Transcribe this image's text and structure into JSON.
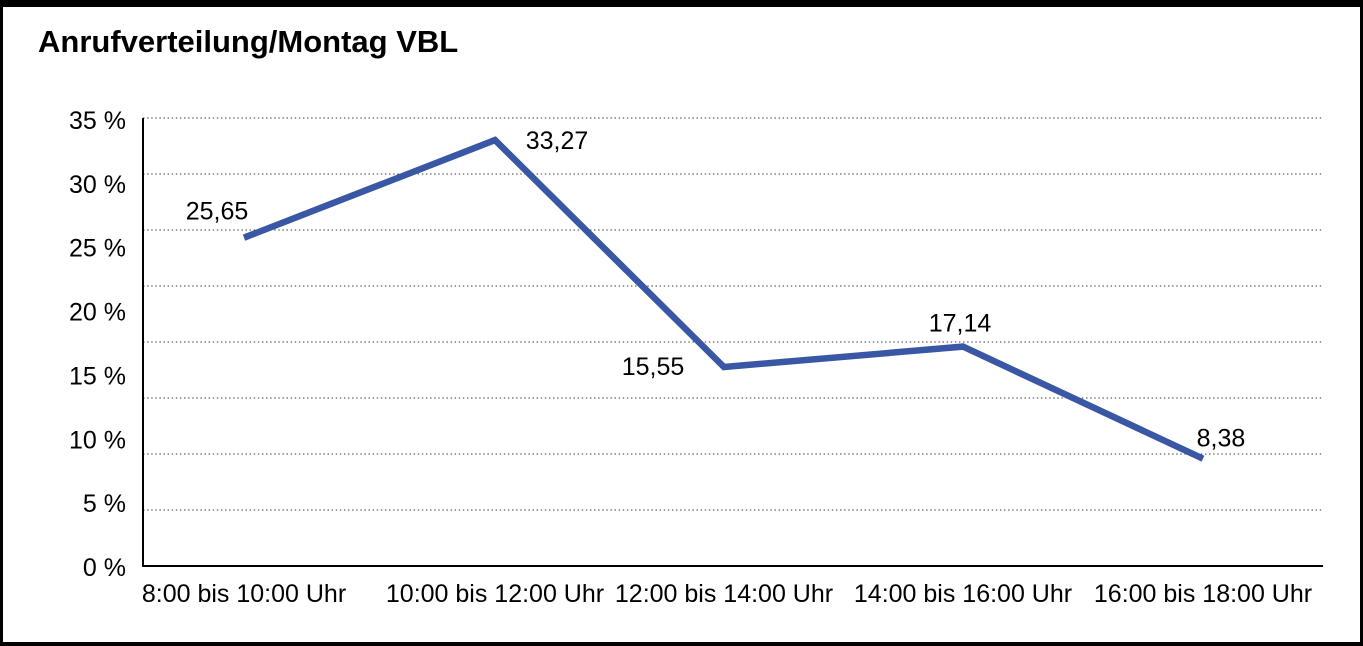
{
  "panel": {
    "background": "#ffffff",
    "border_color": "#000000"
  },
  "chart_data": {
    "type": "line",
    "title": "Anrufverteilung/Montag VBL",
    "categories": [
      "8:00 bis 10:00 Uhr",
      "10:00 bis 12:00 Uhr",
      "12:00 bis 14:00 Uhr",
      "14:00 bis 16:00 Uhr",
      "16:00 bis 18:00 Uhr"
    ],
    "values": [
      25.65,
      33.27,
      15.55,
      17.14,
      8.38
    ],
    "value_labels": [
      "25,65",
      "33,27",
      "15,55",
      "17,14",
      "8,38"
    ],
    "y_ticks": [
      "35 %",
      "30 %",
      "25 %",
      "20 %",
      "15 %",
      "10 %",
      "5 %",
      "0 %"
    ],
    "ylim": [
      0,
      35
    ],
    "ytick_step": 5,
    "unit": "%",
    "xlabel": "",
    "ylabel": "",
    "legend": "none",
    "grid": "horizontal-dotted",
    "line_color": "#3A57A5",
    "grid_color": "#3f3f3f",
    "axis_color": "#000000",
    "text_color": "#000000"
  }
}
